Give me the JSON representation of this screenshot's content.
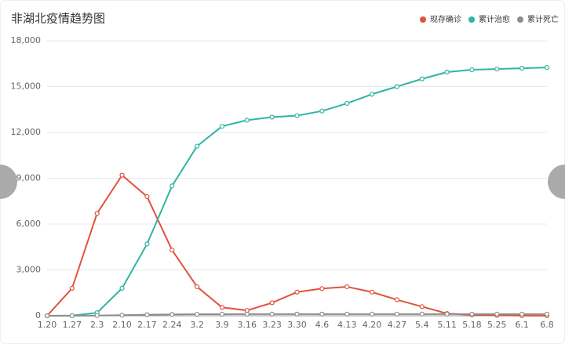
{
  "chart_data": {
    "type": "line",
    "title": "非湖北疫情趋势图",
    "categories": [
      "1.20",
      "1.27",
      "2.3",
      "2.10",
      "2.17",
      "2.24",
      "3.2",
      "3.9",
      "3.16",
      "3.23",
      "3.30",
      "4.6",
      "4.13",
      "4.20",
      "4.27",
      "5.4",
      "5.11",
      "5.18",
      "5.25",
      "6.1",
      "6.8"
    ],
    "series": [
      {
        "name": "现存确诊",
        "color": "#e0533c",
        "values": [
          0,
          1800,
          6700,
          9200,
          7800,
          4300,
          1900,
          550,
          350,
          850,
          1550,
          1780,
          1900,
          1550,
          1050,
          600,
          150,
          60,
          30,
          10,
          5
        ]
      },
      {
        "name": "累计治愈",
        "color": "#30b4a4",
        "values": [
          0,
          10,
          200,
          1800,
          4700,
          8500,
          11100,
          12400,
          12800,
          13000,
          13100,
          13400,
          13900,
          14500,
          15000,
          15500,
          15950,
          16100,
          16150,
          16200,
          16250
        ]
      },
      {
        "name": "累计死亡",
        "color": "#8c8c8c",
        "values": [
          0,
          5,
          15,
          40,
          70,
          90,
          100,
          105,
          107,
          108,
          110,
          110,
          112,
          112,
          112,
          112,
          112,
          112,
          112,
          112,
          112
        ]
      }
    ],
    "ylim": [
      0,
      18000
    ],
    "yticks": [
      {
        "value": 0,
        "label": "0"
      },
      {
        "value": 3000,
        "label": "3,000"
      },
      {
        "value": 6000,
        "label": "6,000"
      },
      {
        "value": 9000,
        "label": "9,000"
      },
      {
        "value": 12000,
        "label": "12,000"
      },
      {
        "value": 15000,
        "label": "15,000"
      },
      {
        "value": 18000,
        "label": "18,000"
      }
    ],
    "grid": true,
    "legend": "top-right"
  }
}
